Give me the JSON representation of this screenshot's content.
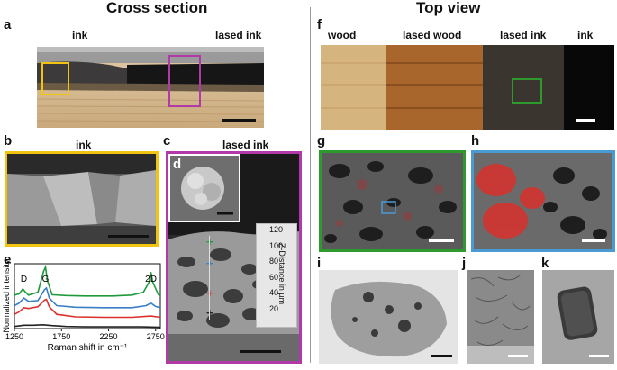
{
  "headings": {
    "left": "Cross section",
    "right": "Top view"
  },
  "panels": {
    "a": {
      "letter": "a",
      "label_left": "ink",
      "label_right": "lased ink"
    },
    "b": {
      "letter": "b",
      "label": "ink"
    },
    "c": {
      "letter": "c",
      "label": "lased ink"
    },
    "d": {
      "letter": "d"
    },
    "e": {
      "letter": "e"
    },
    "f": {
      "letter": "f",
      "labels": [
        "wood",
        "lased wood",
        "lased ink",
        "ink"
      ]
    },
    "g": {
      "letter": "g"
    },
    "h": {
      "letter": "h"
    },
    "i": {
      "letter": "i"
    },
    "j": {
      "letter": "j"
    },
    "k": {
      "letter": "k"
    }
  },
  "z_axis": {
    "label": "Z-Distance in µm",
    "ticks": [
      "120",
      "100",
      "80",
      "60",
      "40",
      "20"
    ]
  },
  "markers": [
    "+",
    "+",
    "+",
    "+"
  ],
  "colors": {
    "yellow": "#f1c40f",
    "magenta": "#b23aa8",
    "green": "#2e9a2e",
    "blue": "#4a9ad4",
    "red": "#d9302b",
    "black": "#222222",
    "raman_green": "#1f9a3a",
    "raman_blue": "#3a7fc4"
  },
  "chart_data": {
    "type": "line",
    "xlabel": "Raman shift in cm⁻¹",
    "ylabel": "Normalized intensity",
    "xlim": [
      1250,
      2800
    ],
    "x_ticks": [
      1250,
      1750,
      2250,
      2750
    ],
    "peak_labels": [
      {
        "text": "D",
        "x": 1350
      },
      {
        "text": "G",
        "x": 1580
      },
      {
        "text": "2D",
        "x": 2700
      }
    ],
    "series": [
      {
        "color": "green",
        "x": [
          1250,
          1300,
          1340,
          1360,
          1400,
          1500,
          1560,
          1580,
          1600,
          1650,
          1800,
          2000,
          2300,
          2500,
          2620,
          2680,
          2700,
          2720,
          2780,
          2800
        ],
        "values": [
          0.05,
          0.08,
          0.2,
          0.14,
          0.05,
          0.12,
          0.62,
          0.72,
          0.4,
          0.06,
          0.04,
          0.03,
          0.03,
          0.05,
          0.12,
          0.36,
          0.6,
          0.36,
          0.06,
          0.04
        ]
      },
      {
        "color": "blue",
        "x": [
          1250,
          1300,
          1350,
          1400,
          1500,
          1570,
          1590,
          1620,
          1700,
          1900,
          2200,
          2500,
          2650,
          2700,
          2750,
          2800
        ],
        "values": [
          0.1,
          0.16,
          0.28,
          0.2,
          0.22,
          0.48,
          0.52,
          0.28,
          0.1,
          0.06,
          0.05,
          0.05,
          0.1,
          0.16,
          0.08,
          0.05
        ]
      },
      {
        "color": "red",
        "x": [
          1250,
          1300,
          1350,
          1400,
          1500,
          1570,
          1590,
          1620,
          1700,
          1900,
          2200,
          2500,
          2700,
          2800
        ],
        "values": [
          0.12,
          0.18,
          0.28,
          0.26,
          0.3,
          0.46,
          0.48,
          0.3,
          0.12,
          0.06,
          0.05,
          0.05,
          0.08,
          0.05
        ]
      },
      {
        "color": "black",
        "x": [
          1250,
          1350,
          1450,
          1550,
          1650,
          1800,
          2000,
          2300,
          2600,
          2800
        ],
        "values": [
          0.05,
          0.08,
          0.08,
          0.09,
          0.07,
          0.05,
          0.04,
          0.04,
          0.04,
          0.03
        ]
      }
    ]
  }
}
